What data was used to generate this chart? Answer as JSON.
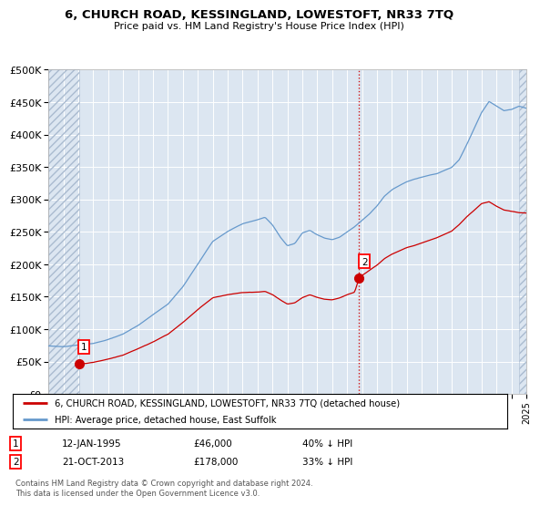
{
  "title": "6, CHURCH ROAD, KESSINGLAND, LOWESTOFT, NR33 7TQ",
  "subtitle": "Price paid vs. HM Land Registry's House Price Index (HPI)",
  "legend_line1": "6, CHURCH ROAD, KESSINGLAND, LOWESTOFT, NR33 7TQ (detached house)",
  "legend_line2": "HPI: Average price, detached house, East Suffolk",
  "footer": "Contains HM Land Registry data © Crown copyright and database right 2024.\nThis data is licensed under the Open Government Licence v3.0.",
  "transaction1_date": "12-JAN-1995",
  "transaction1_price": "£46,000",
  "transaction1_pct": "40% ↓ HPI",
  "transaction2_date": "21-OCT-2013",
  "transaction2_price": "£178,000",
  "transaction2_pct": "33% ↓ HPI",
  "xlim": [
    1993,
    2025
  ],
  "ylim": [
    0,
    500000
  ],
  "yticks": [
    0,
    50000,
    100000,
    150000,
    200000,
    250000,
    300000,
    350000,
    400000,
    450000,
    500000
  ],
  "ytick_labels": [
    "£0",
    "£50K",
    "£100K",
    "£150K",
    "£200K",
    "£250K",
    "£300K",
    "£350K",
    "£400K",
    "£450K",
    "£500K"
  ],
  "hpi_color": "#6699cc",
  "price_color": "#cc0000",
  "bg_color": "#dce6f1",
  "transaction1_x": 1995.04,
  "transaction1_y": 46000,
  "transaction2_x": 2013.8,
  "transaction2_y": 178000
}
